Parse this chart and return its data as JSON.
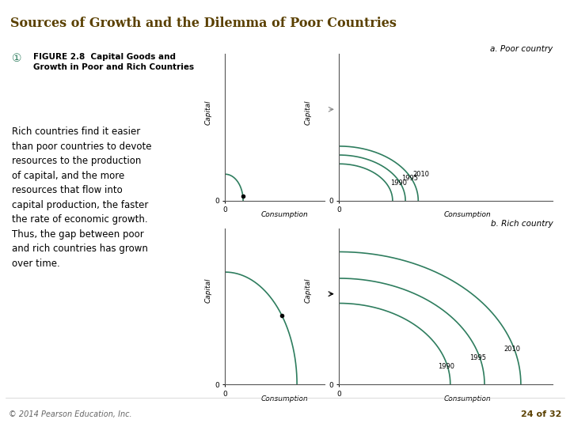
{
  "title": "Sources of Growth and the Dilemma of Poor Countries",
  "title_color": "#5a4000",
  "title_fontsize": 11.5,
  "figure_icon": "♥",
  "caption_bold": "FIGURE 2.8  Capital Goods and\nGrowth in Poor and Rich Countries",
  "caption_text": "Rich countries find it easier\nthan poor countries to devote\nresources to the production\nof capital, and the more\nresources that flow into\ncapital production, the faster\nthe rate of economic growth.\nThus, the gap between poor\nand rich countries has grown\nover time.",
  "caption_color_icon": "#2e7d5e",
  "panel_a_title": "a. Poor country",
  "panel_b_title": "b. Rich country",
  "curve_color": "#2e7d5e",
  "axis_label_fontsize": 6.5,
  "panel_title_fontsize": 7.5,
  "year_labels_poor": [
    "1990",
    "1995",
    "2010"
  ],
  "year_labels_rich": [
    "1990",
    "1995",
    "2010"
  ],
  "footer_left": "© 2014 Pearson Education, Inc.",
  "footer_right": "24 of 32",
  "bg_color": "#ffffff",
  "title_bg_color": "#ffffff",
  "panel_bg_color": "#ffffff"
}
